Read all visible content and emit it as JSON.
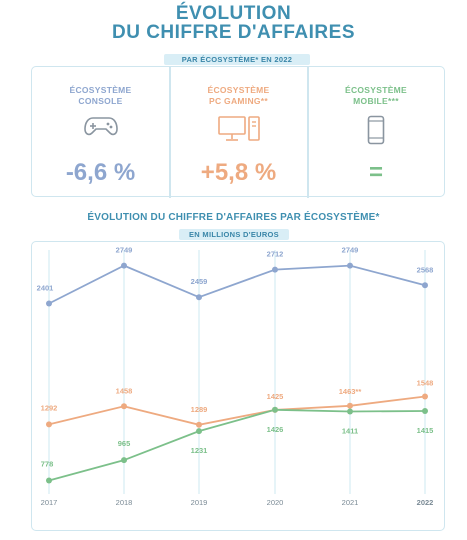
{
  "header": {
    "line1": "ÉVOLUTION",
    "line2": "DU CHIFFRE D'AFFAIRES"
  },
  "kpi": {
    "pill": "PAR ÉCOSYSTÈME* EN 2022",
    "items": [
      {
        "line1": "ÉCOSYSTÈME",
        "line2": "CONSOLE",
        "icon": "gamepad-icon",
        "value": "-6,6 %",
        "color": "#8ea6cf"
      },
      {
        "line1": "ÉCOSYSTÈME",
        "line2": "PC GAMING**",
        "icon": "desktop-pc-icon",
        "value": "+5,8 %",
        "color": "#eeaa80"
      },
      {
        "line1": "ÉCOSYSTÈME",
        "line2": "MOBILE***",
        "icon": "smartphone-icon",
        "value": "=",
        "color": "#7cc08a"
      }
    ]
  },
  "chart_data": {
    "type": "line",
    "title": "ÉVOLUTION DU CHIFFRE D'AFFAIRES PAR ÉCOSYSTÈME*",
    "subtitle": "EN MILLIONS D'EUROS",
    "categories": [
      "2017",
      "2018",
      "2019",
      "2020",
      "2021",
      "2022"
    ],
    "ylim": [
      700,
      2800
    ],
    "grid": "vertical",
    "series": [
      {
        "color": "#8ea6cf",
        "values": [
          2401,
          2749,
          2459,
          2712,
          2749,
          2568
        ],
        "labels": [
          "2401",
          "2749",
          "2459",
          "2712",
          "2749",
          "2568"
        ]
      },
      {
        "color": "#eeaa80",
        "values": [
          1292,
          1458,
          1289,
          1425,
          1463,
          1548
        ],
        "labels": [
          "1292",
          "1458",
          "1289",
          "1425",
          "1463**",
          "1548"
        ]
      },
      {
        "color": "#7cc08a",
        "values": [
          778,
          965,
          1231,
          1426,
          1411,
          1415
        ],
        "labels": [
          "778",
          "965",
          "1231",
          "1426",
          "1411",
          "1415"
        ]
      }
    ]
  }
}
